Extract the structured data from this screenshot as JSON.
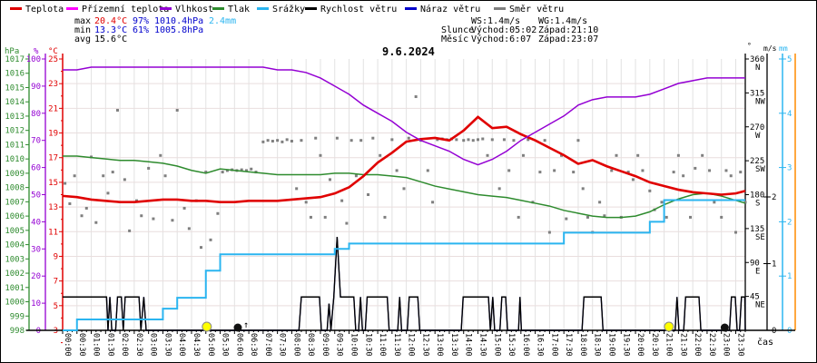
{
  "title": "9.6.2024",
  "legend": {
    "items": [
      {
        "label": "Teplota",
        "color": "#e00000"
      },
      {
        "label": "Přízemní teplota",
        "color": "#ff00ff"
      },
      {
        "label": "Vlhkost",
        "color": "#9400d3"
      },
      {
        "label": "Tlak",
        "color": "#2e8b2e"
      },
      {
        "label": "Srážky",
        "color": "#2bb5f0"
      },
      {
        "label": "Rychlost větru",
        "color": "#000000"
      },
      {
        "label": "Náraz větru",
        "color": "#0000cc"
      },
      {
        "label": "Směr větru",
        "color": "#7f7f7f"
      }
    ]
  },
  "stats": {
    "max_label": "max",
    "max_temp": "20.4°C",
    "max_hum": "97%",
    "max_pres": "1010.4hPa",
    "max_precip": "2.4mm",
    "min_label": "min",
    "min_temp": "13.3°C",
    "min_hum": "61%",
    "min_pres": "1005.8hPa",
    "avg_label": "avg",
    "avg_temp": "15.6°C"
  },
  "wind_sun_moon": {
    "ws": "WS:1.4m/s",
    "wg": "WG:1.4m/s",
    "sun_label": "Slunce",
    "sun_rise": "Východ:05:02",
    "sun_set": "Západ:21:10",
    "moon_label": "Měsíc",
    "moon_rise": "Východ:6:07",
    "moon_set": "Západ:23:07"
  },
  "axes": {
    "hpa": {
      "unit": "hPa",
      "color": "#2e8b2e",
      "ticks": [
        1017,
        1016,
        1015,
        1014,
        1013,
        1012,
        1011,
        1010,
        1009,
        1008,
        1007,
        1006,
        1005,
        1004,
        1003,
        1002,
        1001,
        1000,
        999,
        998
      ]
    },
    "pct": {
      "unit": "%",
      "color": "#9400d3",
      "ticks": [
        100,
        90,
        80,
        70,
        60,
        50,
        40,
        30,
        20,
        10,
        0
      ]
    },
    "temp": {
      "unit": "°C",
      "color": "#e00000",
      "ticks": [
        25,
        23,
        21,
        19,
        17,
        15,
        13,
        11,
        9,
        7,
        5,
        3
      ]
    },
    "deg": {
      "unit": "°",
      "color": "#000000",
      "ticks": [
        [
          360,
          "N"
        ],
        [
          315,
          "NW"
        ],
        [
          270,
          "W"
        ],
        [
          225,
          "SW"
        ],
        [
          180,
          "S"
        ],
        [
          135,
          "SE"
        ],
        [
          90,
          "E"
        ],
        [
          45,
          "NE"
        ]
      ]
    },
    "ms": {
      "unit": "m/s",
      "color": "#000000",
      "ticks": [
        0,
        1,
        2
      ]
    },
    "mm": {
      "unit": "mm",
      "color": "#2bb5f0",
      "ticks": [
        0,
        1,
        2,
        3,
        4,
        5
      ]
    }
  },
  "x_axis": {
    "caption": "čas",
    "labels": [
      "00:00",
      "00:30",
      "01:00",
      "01:30",
      "02:00",
      "02:30",
      "03:00",
      "03:30",
      "04:00",
      "04:30",
      "05:00",
      "05:30",
      "06:00",
      "06:30",
      "07:00",
      "07:30",
      "08:00",
      "08:30",
      "09:00",
      "09:30",
      "10:00",
      "10:30",
      "11:00",
      "11:30",
      "12:00",
      "12:30",
      "13:00",
      "13:30",
      "14:00",
      "14:30",
      "15:00",
      "15:30",
      "16:00",
      "16:30",
      "17:00",
      "17:30",
      "18:00",
      "18:30",
      "19:00",
      "19:30",
      "20:00",
      "20:30",
      "21:00",
      "21:30",
      "22:00",
      "22:30",
      "23:00",
      "23:30"
    ]
  },
  "markers": {
    "sunrise_min": 302,
    "moonrise_min": 367,
    "sunset_min": 1270,
    "moonset_min": 1387,
    "arrow_up": "↑",
    "sun_color": "#ffff00",
    "moon_color": "#111111"
  },
  "chart_data": {
    "type": "line",
    "interval_min": 30,
    "x_range_min": [
      0,
      1430
    ],
    "grid": true,
    "series": [
      {
        "name": "Teplota",
        "unit": "°C",
        "axis": "temp",
        "color": "#e00000",
        "values": [
          13.9,
          13.8,
          13.6,
          13.5,
          13.4,
          13.4,
          13.5,
          13.6,
          13.6,
          13.5,
          13.5,
          13.4,
          13.4,
          13.5,
          13.5,
          13.5,
          13.6,
          13.7,
          13.8,
          14.1,
          14.6,
          15.5,
          16.6,
          17.4,
          18.3,
          18.5,
          18.6,
          18.4,
          19.2,
          20.3,
          19.4,
          19.5,
          18.9,
          18.4,
          17.8,
          17.2,
          16.5,
          16.8,
          16.3,
          15.9,
          15.5,
          15.0,
          14.7,
          14.4,
          14.2,
          14.1,
          14.0,
          14.1,
          14.3
        ]
      },
      {
        "name": "Přízemní teplota",
        "unit": "°C",
        "axis": "temp",
        "color": "#ff00ff",
        "note": "coincides with Teplota line (hidden underneath)",
        "values": [
          13.9,
          13.8,
          13.6,
          13.5,
          13.4,
          13.4,
          13.5,
          13.6,
          13.6,
          13.5,
          13.5,
          13.4,
          13.4,
          13.5,
          13.5,
          13.5,
          13.6,
          13.7,
          13.8,
          14.1,
          14.6,
          15.5,
          16.6,
          17.4,
          18.3,
          18.5,
          18.6,
          18.4,
          19.2,
          20.3,
          19.4,
          19.5,
          18.9,
          18.4,
          17.8,
          17.2,
          16.5,
          16.8,
          16.3,
          15.9,
          15.5,
          15.0,
          14.7,
          14.4,
          14.2,
          14.1,
          14.0,
          14.1,
          14.3
        ]
      },
      {
        "name": "Vlhkost",
        "unit": "%",
        "axis": "pct",
        "color": "#9400d3",
        "values": [
          96,
          96,
          97,
          97,
          97,
          97,
          97,
          97,
          97,
          97,
          97,
          97,
          97,
          97,
          97,
          96,
          96,
          95,
          93,
          90,
          87,
          83,
          80,
          77,
          73,
          70,
          68,
          66,
          63,
          61,
          63,
          66,
          70,
          73,
          76,
          79,
          83,
          85,
          86,
          86,
          86,
          87,
          89,
          91,
          92,
          93,
          93,
          93,
          93
        ]
      },
      {
        "name": "Tlak",
        "unit": "hPa",
        "axis": "hpa",
        "color": "#2e8b2e",
        "values": [
          1010.2,
          1010.2,
          1010.1,
          1010.0,
          1009.9,
          1009.9,
          1009.8,
          1009.7,
          1009.5,
          1009.2,
          1009.0,
          1009.3,
          1009.2,
          1009.1,
          1009.0,
          1008.9,
          1008.9,
          1008.9,
          1008.9,
          1009.0,
          1009.0,
          1008.9,
          1008.9,
          1008.8,
          1008.7,
          1008.4,
          1008.1,
          1007.9,
          1007.7,
          1007.5,
          1007.4,
          1007.3,
          1007.1,
          1006.9,
          1006.7,
          1006.4,
          1006.2,
          1006.0,
          1005.9,
          1005.9,
          1006.0,
          1006.3,
          1006.8,
          1007.2,
          1007.5,
          1007.6,
          1007.4,
          1007.1,
          1006.9
        ]
      },
      {
        "name": "Srážky",
        "unit": "mm",
        "axis": "mm",
        "color": "#2bb5f0",
        "step": true,
        "values": [
          0.0,
          0.2,
          0.2,
          0.2,
          0.2,
          0.2,
          0.2,
          0.4,
          0.6,
          0.6,
          1.1,
          1.4,
          1.4,
          1.4,
          1.4,
          1.4,
          1.4,
          1.4,
          1.4,
          1.5,
          1.6,
          1.6,
          1.6,
          1.6,
          1.6,
          1.6,
          1.6,
          1.6,
          1.6,
          1.6,
          1.6,
          1.6,
          1.6,
          1.6,
          1.6,
          1.8,
          1.8,
          1.8,
          1.8,
          1.8,
          1.8,
          2.0,
          2.4,
          2.4,
          2.4,
          2.4,
          2.4,
          2.4,
          2.4
        ]
      }
    ],
    "wind_speed_points": {
      "name": "Rychlost větru",
      "unit": "m/s",
      "axis": "ms",
      "color": "#000000",
      "max": 1.4,
      "points": [
        [
          0,
          0.5
        ],
        [
          92,
          0.5
        ],
        [
          95,
          0
        ],
        [
          99,
          0.5
        ],
        [
          103,
          0
        ],
        [
          111,
          0
        ],
        [
          115,
          0.5
        ],
        [
          123,
          0.5
        ],
        [
          127,
          0
        ],
        [
          131,
          0.5
        ],
        [
          160,
          0.5
        ],
        [
          164,
          0
        ],
        [
          170,
          0.5
        ],
        [
          175,
          0
        ],
        [
          200,
          0
        ],
        [
          495,
          0
        ],
        [
          500,
          0.5
        ],
        [
          538,
          0.5
        ],
        [
          542,
          0
        ],
        [
          554,
          0
        ],
        [
          558,
          0.4
        ],
        [
          562,
          0
        ],
        [
          568,
          0.5
        ],
        [
          575,
          1.4
        ],
        [
          582,
          0.5
        ],
        [
          610,
          0.5
        ],
        [
          614,
          0
        ],
        [
          620,
          0
        ],
        [
          624,
          0.5
        ],
        [
          628,
          0
        ],
        [
          634,
          0
        ],
        [
          638,
          0.5
        ],
        [
          680,
          0.5
        ],
        [
          684,
          0
        ],
        [
          702,
          0
        ],
        [
          706,
          0.5
        ],
        [
          710,
          0
        ],
        [
          722,
          0
        ],
        [
          726,
          0.5
        ],
        [
          744,
          0.5
        ],
        [
          748,
          0
        ],
        [
          835,
          0
        ],
        [
          839,
          0.5
        ],
        [
          892,
          0.5
        ],
        [
          896,
          0
        ],
        [
          901,
          0.5
        ],
        [
          905,
          0
        ],
        [
          916,
          0
        ],
        [
          920,
          0.5
        ],
        [
          928,
          0.5
        ],
        [
          932,
          0
        ],
        [
          955,
          0
        ],
        [
          958,
          0.5
        ],
        [
          961,
          0
        ],
        [
          1088,
          0
        ],
        [
          1092,
          0.5
        ],
        [
          1128,
          0.5
        ],
        [
          1132,
          0
        ],
        [
          1283,
          0
        ],
        [
          1287,
          0.5
        ],
        [
          1291,
          0
        ],
        [
          1301,
          0
        ],
        [
          1305,
          0.5
        ],
        [
          1333,
          0.5
        ],
        [
          1337,
          0
        ],
        [
          1397,
          0
        ],
        [
          1401,
          0.5
        ],
        [
          1409,
          0.5
        ],
        [
          1413,
          0
        ],
        [
          1418,
          0
        ],
        [
          1422,
          0.5
        ],
        [
          1429,
          0.5
        ],
        [
          1430,
          0
        ]
      ]
    },
    "wind_gust": {
      "name": "Náraz větru",
      "unit": "m/s",
      "axis": "ms",
      "color": "#0000cc",
      "max": 1.4,
      "note": "identical to Rychlost větru, hidden underneath"
    },
    "wind_dir_points": {
      "name": "Směr větru",
      "unit": "deg",
      "axis": "deg",
      "color": "#7f7f7f",
      "points": [
        [
          5,
          195
        ],
        [
          15,
          168
        ],
        [
          25,
          205
        ],
        [
          40,
          152
        ],
        [
          50,
          162
        ],
        [
          60,
          230
        ],
        [
          70,
          143
        ],
        [
          85,
          205
        ],
        [
          95,
          182
        ],
        [
          105,
          210
        ],
        [
          115,
          292
        ],
        [
          130,
          200
        ],
        [
          140,
          132
        ],
        [
          155,
          172
        ],
        [
          165,
          152
        ],
        [
          180,
          215
        ],
        [
          190,
          148
        ],
        [
          205,
          232
        ],
        [
          215,
          205
        ],
        [
          230,
          146
        ],
        [
          240,
          292
        ],
        [
          255,
          162
        ],
        [
          265,
          135
        ],
        [
          280,
          172
        ],
        [
          290,
          110
        ],
        [
          300,
          210
        ],
        [
          310,
          120
        ],
        [
          325,
          155
        ],
        [
          335,
          210
        ],
        [
          345,
          212
        ],
        [
          355,
          213
        ],
        [
          365,
          212
        ],
        [
          375,
          213
        ],
        [
          385,
          212
        ],
        [
          395,
          214
        ],
        [
          405,
          210
        ],
        [
          420,
          250
        ],
        [
          430,
          252
        ],
        [
          440,
          251
        ],
        [
          450,
          252
        ],
        [
          460,
          250
        ],
        [
          470,
          253
        ],
        [
          480,
          251
        ],
        [
          490,
          188
        ],
        [
          500,
          252
        ],
        [
          510,
          170
        ],
        [
          520,
          150
        ],
        [
          530,
          255
        ],
        [
          540,
          232
        ],
        [
          550,
          150
        ],
        [
          560,
          200
        ],
        [
          575,
          255
        ],
        [
          585,
          172
        ],
        [
          595,
          142
        ],
        [
          605,
          252
        ],
        [
          615,
          205
        ],
        [
          625,
          252
        ],
        [
          640,
          180
        ],
        [
          650,
          255
        ],
        [
          665,
          232
        ],
        [
          675,
          150
        ],
        [
          690,
          253
        ],
        [
          700,
          212
        ],
        [
          715,
          188
        ],
        [
          725,
          255
        ],
        [
          740,
          310
        ],
        [
          750,
          252
        ],
        [
          765,
          212
        ],
        [
          775,
          170
        ],
        [
          785,
          253
        ],
        [
          795,
          254
        ],
        [
          805,
          253
        ],
        [
          815,
          254
        ],
        [
          825,
          253
        ],
        [
          840,
          252
        ],
        [
          850,
          253
        ],
        [
          860,
          252
        ],
        [
          870,
          253
        ],
        [
          880,
          254
        ],
        [
          890,
          232
        ],
        [
          900,
          253
        ],
        [
          915,
          188
        ],
        [
          925,
          253
        ],
        [
          935,
          212
        ],
        [
          945,
          252
        ],
        [
          955,
          150
        ],
        [
          965,
          232
        ],
        [
          975,
          253
        ],
        [
          985,
          170
        ],
        [
          1000,
          210
        ],
        [
          1010,
          252
        ],
        [
          1020,
          130
        ],
        [
          1030,
          212
        ],
        [
          1045,
          232
        ],
        [
          1055,
          148
        ],
        [
          1070,
          210
        ],
        [
          1080,
          252
        ],
        [
          1090,
          188
        ],
        [
          1100,
          150
        ],
        [
          1110,
          130
        ],
        [
          1125,
          170
        ],
        [
          1135,
          152
        ],
        [
          1150,
          212
        ],
        [
          1160,
          232
        ],
        [
          1170,
          150
        ],
        [
          1185,
          210
        ],
        [
          1195,
          200
        ],
        [
          1205,
          232
        ],
        [
          1215,
          212
        ],
        [
          1230,
          185
        ],
        [
          1240,
          160
        ],
        [
          1255,
          170
        ],
        [
          1265,
          150
        ],
        [
          1280,
          210
        ],
        [
          1290,
          232
        ],
        [
          1300,
          205
        ],
        [
          1315,
          150
        ],
        [
          1325,
          215
        ],
        [
          1340,
          232
        ],
        [
          1355,
          212
        ],
        [
          1365,
          170
        ],
        [
          1380,
          150
        ],
        [
          1390,
          212
        ],
        [
          1400,
          205
        ],
        [
          1410,
          130
        ],
        [
          1420,
          210
        ],
        [
          1430,
          170
        ]
      ]
    }
  }
}
